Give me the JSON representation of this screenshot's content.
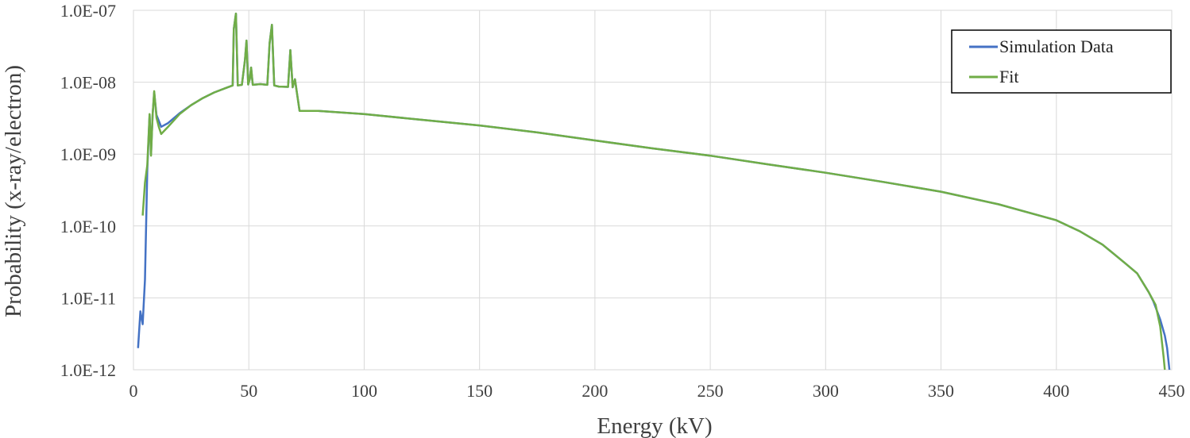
{
  "chart_data": {
    "type": "line",
    "title": "",
    "xlabel": "Energy (kV)",
    "ylabel": "Probability (x-ray/electron)",
    "xlim": [
      0,
      450
    ],
    "ylim": [
      1e-12,
      1e-07
    ],
    "yscale": "log",
    "x_ticks": [
      0,
      50,
      100,
      150,
      200,
      250,
      300,
      350,
      400,
      450
    ],
    "y_ticks": [
      {
        "value": 1e-12,
        "label": "1.0E-12"
      },
      {
        "value": 1e-11,
        "label": "1.0E-11"
      },
      {
        "value": 1e-10,
        "label": "1.0E-10"
      },
      {
        "value": 1e-09,
        "label": "1.0E-09"
      },
      {
        "value": 1e-08,
        "label": "1.0E-08"
      },
      {
        "value": 1e-07,
        "label": "1.0E-07"
      }
    ],
    "grid": true,
    "legend_position": "top-right",
    "series": [
      {
        "name": "Simulation Data",
        "color": "#4472C4",
        "points": [
          [
            2,
            2e-12
          ],
          [
            3,
            6.5e-12
          ],
          [
            4,
            4.3e-12
          ],
          [
            5,
            1.8e-11
          ],
          [
            6,
            6e-10
          ],
          [
            7,
            3.5e-09
          ],
          [
            7.6,
            1e-09
          ],
          [
            8.3,
            3.5e-09
          ],
          [
            9,
            7.2e-09
          ],
          [
            10,
            3.5e-09
          ],
          [
            12,
            2.4e-09
          ],
          [
            15,
            2.7e-09
          ],
          [
            20,
            3.7e-09
          ],
          [
            25,
            4.8e-09
          ],
          [
            30,
            6e-09
          ],
          [
            35,
            7.2e-09
          ],
          [
            40,
            8.3e-09
          ],
          [
            43,
            9e-09
          ],
          [
            43.5,
            5.5e-08
          ],
          [
            44.4,
            9e-08
          ],
          [
            45.2,
            9e-09
          ],
          [
            47,
            9.2e-09
          ],
          [
            48.3,
            2e-08
          ],
          [
            49,
            3.8e-08
          ],
          [
            49.7,
            9.3e-09
          ],
          [
            50.4,
            1.1e-08
          ],
          [
            51,
            1.6e-08
          ],
          [
            51.7,
            9.2e-09
          ],
          [
            55,
            9.4e-09
          ],
          [
            58,
            9.2e-09
          ],
          [
            59,
            3.5e-08
          ],
          [
            60,
            6.3e-08
          ],
          [
            61,
            9e-09
          ],
          [
            63,
            8.7e-09
          ],
          [
            67,
            8.6e-09
          ],
          [
            68,
            2.8e-08
          ],
          [
            69,
            8.5e-09
          ],
          [
            70,
            1.1e-08
          ],
          [
            70.6,
            8e-09
          ],
          [
            72,
            4e-09
          ],
          [
            80,
            4e-09
          ],
          [
            100,
            3.6e-09
          ],
          [
            125,
            3e-09
          ],
          [
            150,
            2.5e-09
          ],
          [
            175,
            2e-09
          ],
          [
            200,
            1.55e-09
          ],
          [
            225,
            1.2e-09
          ],
          [
            250,
            9.5e-10
          ],
          [
            275,
            7.2e-10
          ],
          [
            300,
            5.5e-10
          ],
          [
            325,
            4.1e-10
          ],
          [
            350,
            3e-10
          ],
          [
            375,
            2e-10
          ],
          [
            400,
            1.2e-10
          ],
          [
            410,
            8.5e-11
          ],
          [
            420,
            5.5e-11
          ],
          [
            430,
            3e-11
          ],
          [
            435,
            2.2e-11
          ],
          [
            440,
            1.2e-11
          ],
          [
            442,
            9e-12
          ],
          [
            445,
            5e-12
          ],
          [
            447,
            3e-12
          ],
          [
            448,
            2e-12
          ],
          [
            449,
            1e-12
          ]
        ]
      },
      {
        "name": "Fit",
        "color": "#70AD47",
        "points": [
          [
            4,
            1.4e-10
          ],
          [
            5,
            4e-10
          ],
          [
            6,
            7e-10
          ],
          [
            7,
            3.6e-09
          ],
          [
            7.6,
            9.5e-10
          ],
          [
            8.3,
            3.5e-09
          ],
          [
            9,
            7.5e-09
          ],
          [
            10,
            3.2e-09
          ],
          [
            11,
            2.4e-09
          ],
          [
            12,
            1.9e-09
          ],
          [
            15,
            2.4e-09
          ],
          [
            20,
            3.6e-09
          ],
          [
            25,
            4.8e-09
          ],
          [
            30,
            6e-09
          ],
          [
            35,
            7.2e-09
          ],
          [
            40,
            8.3e-09
          ],
          [
            43,
            9e-09
          ],
          [
            43.5,
            5.5e-08
          ],
          [
            44.4,
            9e-08
          ],
          [
            45.2,
            9e-09
          ],
          [
            47,
            9.2e-09
          ],
          [
            48.3,
            2e-08
          ],
          [
            49,
            3.8e-08
          ],
          [
            49.7,
            9.3e-09
          ],
          [
            50.4,
            1.1e-08
          ],
          [
            51,
            1.6e-08
          ],
          [
            51.7,
            9.2e-09
          ],
          [
            55,
            9.4e-09
          ],
          [
            58,
            9.2e-09
          ],
          [
            59,
            3.5e-08
          ],
          [
            60,
            6.3e-08
          ],
          [
            61,
            9e-09
          ],
          [
            63,
            8.7e-09
          ],
          [
            67,
            8.6e-09
          ],
          [
            68,
            2.8e-08
          ],
          [
            69,
            8.5e-09
          ],
          [
            70,
            1.1e-08
          ],
          [
            70.6,
            8e-09
          ],
          [
            72,
            4e-09
          ],
          [
            80,
            4e-09
          ],
          [
            100,
            3.6e-09
          ],
          [
            125,
            3e-09
          ],
          [
            150,
            2.5e-09
          ],
          [
            175,
            2e-09
          ],
          [
            200,
            1.55e-09
          ],
          [
            225,
            1.2e-09
          ],
          [
            250,
            9.5e-10
          ],
          [
            275,
            7.2e-10
          ],
          [
            300,
            5.5e-10
          ],
          [
            325,
            4.1e-10
          ],
          [
            350,
            3e-10
          ],
          [
            375,
            2e-10
          ],
          [
            400,
            1.2e-10
          ],
          [
            410,
            8.5e-11
          ],
          [
            420,
            5.5e-11
          ],
          [
            430,
            3e-11
          ],
          [
            435,
            2.2e-11
          ],
          [
            440,
            1.2e-11
          ],
          [
            443,
            8e-12
          ],
          [
            445,
            4e-12
          ],
          [
            446.5,
            1.5e-12
          ],
          [
            447,
            1e-12
          ]
        ]
      }
    ]
  }
}
